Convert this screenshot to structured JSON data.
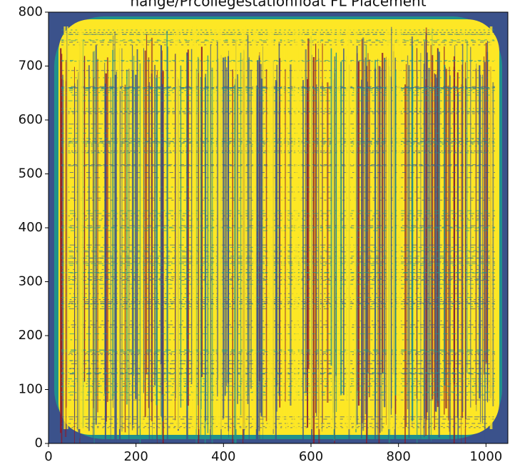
{
  "chart_data": {
    "type": "image",
    "title": "nange/Prcollegestationfloat FL Placement",
    "xlim": [
      0,
      1050
    ],
    "ylim": [
      0,
      800
    ],
    "xticks": [
      0,
      200,
      400,
      600,
      800,
      1000
    ],
    "yticks": [
      0,
      100,
      200,
      300,
      400,
      500,
      600,
      700,
      800
    ]
  }
}
